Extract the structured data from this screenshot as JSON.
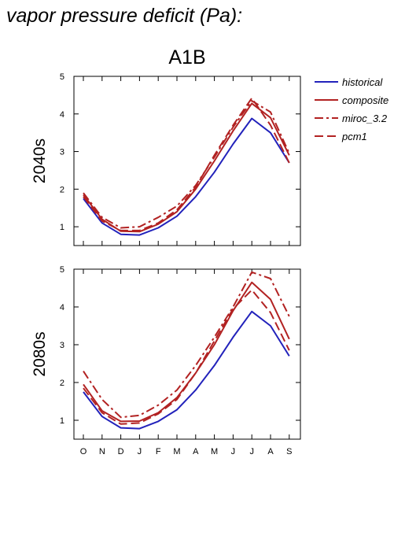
{
  "figure": {
    "title": "vapor pressure deficit (Pa):",
    "scenario": "A1B"
  },
  "chart_data": [
    {
      "type": "line",
      "row_label": "2040s",
      "categories": [
        "O",
        "N",
        "D",
        "J",
        "F",
        "M",
        "A",
        "M",
        "J",
        "J",
        "A",
        "S"
      ],
      "ylim": [
        0.5,
        5
      ],
      "yticks": [
        1,
        2,
        3,
        4,
        5
      ],
      "grid": false,
      "legend_position": "right",
      "series": [
        {
          "name": "historical",
          "color": "#2222bb",
          "dash": "solid",
          "values": [
            1.75,
            1.1,
            0.8,
            0.78,
            0.97,
            1.28,
            1.8,
            2.45,
            3.2,
            3.88,
            3.5,
            2.7
          ]
        },
        {
          "name": "composite",
          "color": "#b22222",
          "dash": "solid",
          "values": [
            1.85,
            1.2,
            0.88,
            0.87,
            1.07,
            1.4,
            2.0,
            2.75,
            3.55,
            4.28,
            3.9,
            2.9
          ]
        },
        {
          "name": "miroc_3.2",
          "color": "#b22222",
          "dash": "dashdot",
          "values": [
            1.9,
            1.25,
            0.97,
            1.0,
            1.25,
            1.55,
            2.1,
            2.85,
            3.65,
            4.35,
            4.05,
            2.95
          ]
        },
        {
          "name": "pcm1",
          "color": "#b22222",
          "dash": "dash",
          "values": [
            1.8,
            1.15,
            0.9,
            0.9,
            1.1,
            1.45,
            2.05,
            2.9,
            3.7,
            4.42,
            3.7,
            2.7
          ]
        }
      ]
    },
    {
      "type": "line",
      "row_label": "2080s",
      "categories": [
        "O",
        "N",
        "D",
        "J",
        "F",
        "M",
        "A",
        "M",
        "J",
        "J",
        "A",
        "S"
      ],
      "ylim": [
        0.5,
        5
      ],
      "yticks": [
        1,
        2,
        3,
        4,
        5
      ],
      "grid": false,
      "series": [
        {
          "name": "historical",
          "color": "#2222bb",
          "dash": "solid",
          "values": [
            1.75,
            1.1,
            0.8,
            0.78,
            0.97,
            1.28,
            1.8,
            2.45,
            3.2,
            3.88,
            3.5,
            2.7
          ]
        },
        {
          "name": "composite",
          "color": "#b22222",
          "dash": "solid",
          "values": [
            1.95,
            1.25,
            0.97,
            0.98,
            1.2,
            1.6,
            2.25,
            3.0,
            3.9,
            4.65,
            4.2,
            3.15
          ]
        },
        {
          "name": "miroc_3.2",
          "color": "#b22222",
          "dash": "dashdot",
          "values": [
            2.3,
            1.55,
            1.08,
            1.13,
            1.4,
            1.8,
            2.45,
            3.2,
            4.0,
            4.92,
            4.75,
            3.75
          ]
        },
        {
          "name": "pcm1",
          "color": "#b22222",
          "dash": "dash",
          "values": [
            1.85,
            1.2,
            0.9,
            0.93,
            1.17,
            1.55,
            2.25,
            3.1,
            3.95,
            4.45,
            3.85,
            2.85
          ]
        }
      ]
    }
  ]
}
